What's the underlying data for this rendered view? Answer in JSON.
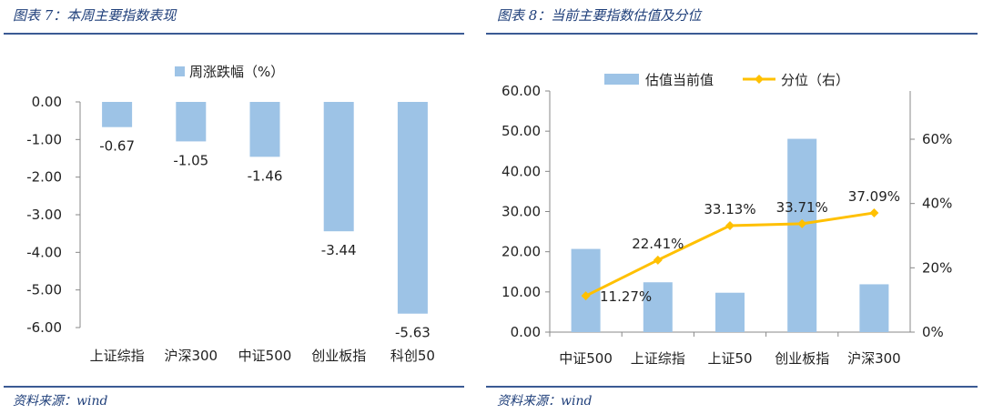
{
  "left_panel": {
    "title": "图表 7：本周主要指数表现",
    "source": "资料来源：wind"
  },
  "right_panel": {
    "title": "图表 8：当前主要指数估值及分位",
    "source": "资料来源：wind"
  },
  "colors": {
    "bar": "#9dc3e6",
    "line": "#ffc000",
    "rule": "#3b5a94"
  },
  "chart_data": [
    {
      "type": "bar",
      "categories": [
        "上证综指",
        "沪深300",
        "中证500",
        "创业板指",
        "科创50"
      ],
      "series": [
        {
          "name": "周涨跌幅（%）",
          "values": [
            -0.67,
            -1.05,
            -1.46,
            -3.44,
            -5.63
          ]
        }
      ],
      "data_labels": [
        "-0.67",
        "-1.05",
        "-1.46",
        "-3.44",
        "-5.63"
      ],
      "ylim": [
        -6.0,
        0.0
      ],
      "yticks": [
        "0.00",
        "-1.00",
        "-2.00",
        "-3.00",
        "-4.00",
        "-5.00",
        "-6.00"
      ],
      "legend_position": "top",
      "grid": false
    },
    {
      "type": "bar+line",
      "categories": [
        "中证500",
        "上证综指",
        "上证50",
        "创业板指",
        "沪深300"
      ],
      "series": [
        {
          "name": "估值当前值",
          "type": "bar",
          "axis": "left",
          "values": [
            20.7,
            12.4,
            9.8,
            48.1,
            11.9
          ]
        },
        {
          "name": "分位（右）",
          "type": "line",
          "axis": "right",
          "values": [
            11.27,
            22.41,
            33.13,
            33.71,
            37.09
          ],
          "data_labels": [
            "11.27%",
            "22.41%",
            "33.13%",
            "33.71%",
            "37.09%"
          ]
        }
      ],
      "ylim": [
        0,
        60
      ],
      "yticks": [
        "0.00",
        "10.00",
        "20.00",
        "30.00",
        "40.00",
        "50.00",
        "60.00"
      ],
      "y2lim": [
        0,
        75
      ],
      "y2ticks": [
        "0%",
        "20%",
        "40%",
        "60%"
      ],
      "legend_position": "top",
      "grid": false
    }
  ]
}
